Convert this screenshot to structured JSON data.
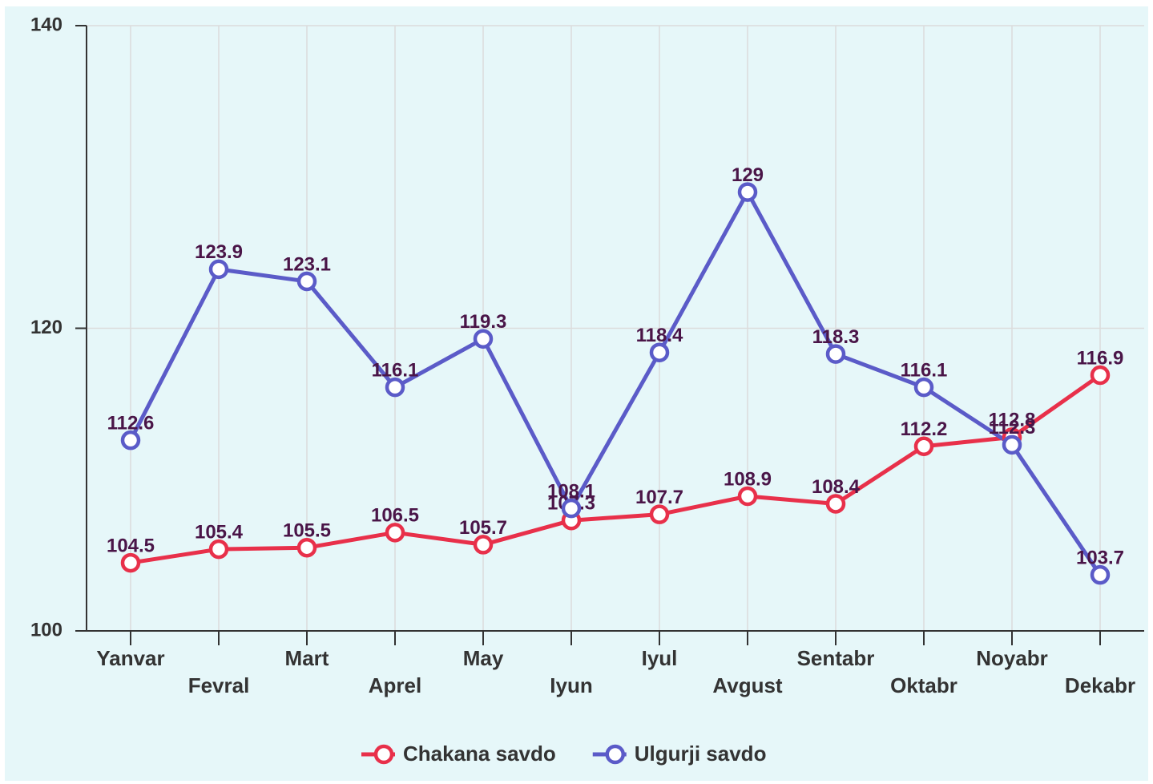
{
  "chart_data": {
    "type": "line",
    "categories": [
      "Yanvar",
      "Fevral",
      "Mart",
      "Aprel",
      "May",
      "Iyun",
      "Iyul",
      "Avgust",
      "Sentabr",
      "Oktabr",
      "Noyabr",
      "Dekabr"
    ],
    "series": [
      {
        "name": "Chakana savdo",
        "color": "#e8304a",
        "values": [
          104.5,
          105.4,
          105.5,
          106.5,
          105.7,
          107.3,
          107.7,
          108.9,
          108.4,
          112.2,
          112.8,
          116.9
        ]
      },
      {
        "name": "Ulgurji savdo",
        "color": "#5b5bc8",
        "values": [
          112.6,
          123.9,
          123.1,
          116.1,
          119.3,
          108.1,
          118.4,
          129,
          118.3,
          116.1,
          112.3,
          103.7
        ]
      }
    ],
    "ylim": [
      100,
      140
    ],
    "yticks": [
      100,
      120,
      140
    ],
    "grid": true,
    "legend": "bottom"
  }
}
